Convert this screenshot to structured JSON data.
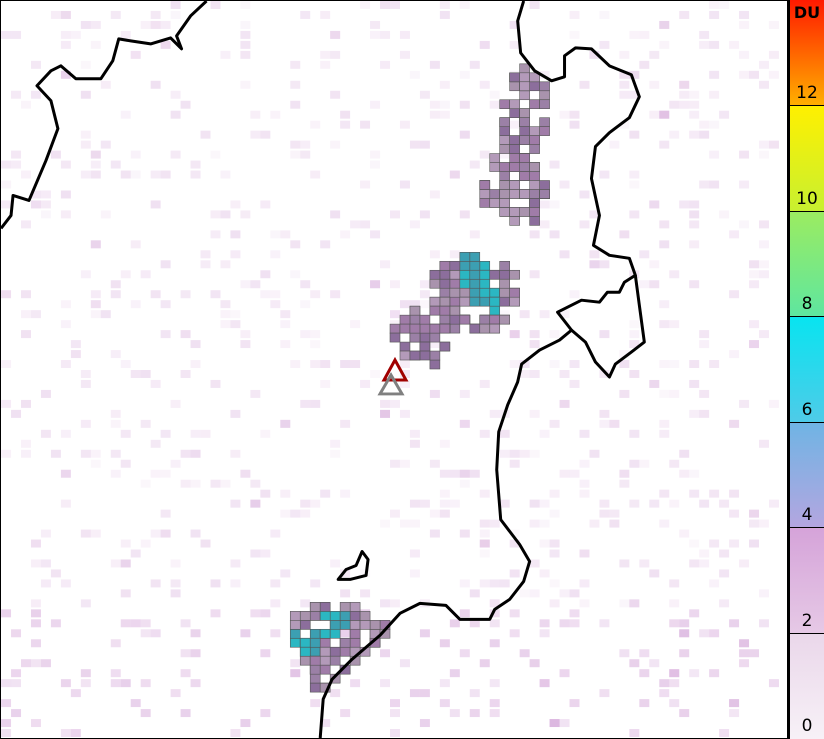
{
  "colorbar": {
    "unit": "DU",
    "range": [
      0,
      14
    ],
    "ticks": [
      "0",
      "2",
      "4",
      "6",
      "8",
      "10",
      "12"
    ],
    "stops": [
      {
        "v": 0,
        "c": "#f7f1f7"
      },
      {
        "v": 2,
        "c": "#ead7ea"
      },
      {
        "v": 2,
        "c": "#e6c9e6"
      },
      {
        "v": 4,
        "c": "#d5a3d9"
      },
      {
        "v": 4,
        "c": "#b4a6e0"
      },
      {
        "v": 6,
        "c": "#6fb4e4"
      },
      {
        "v": 6,
        "c": "#4fcbe8"
      },
      {
        "v": 8,
        "c": "#08e4f0"
      },
      {
        "v": 8,
        "c": "#5ee6a0"
      },
      {
        "v": 10,
        "c": "#9cec60"
      },
      {
        "v": 10,
        "c": "#c8f030"
      },
      {
        "v": 12,
        "c": "#fff000"
      },
      {
        "v": 12,
        "c": "#ffb000"
      },
      {
        "v": 14,
        "c": "#ff1a00"
      }
    ]
  },
  "markers": [
    {
      "name": "volcano-current",
      "color": "#a00000"
    },
    {
      "name": "volcano-previous",
      "color": "#808080"
    }
  ],
  "colors": {
    "coastline": "#000000",
    "cell_border": "#555555"
  }
}
